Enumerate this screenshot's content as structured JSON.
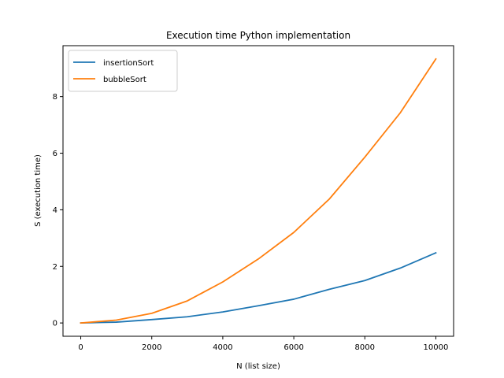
{
  "chart_data": {
    "type": "line",
    "title": "Execution time Python implementation",
    "xlabel": "N (list size)",
    "ylabel": "S (execution time)",
    "xlim": [
      -500,
      10500
    ],
    "ylim": [
      -0.47,
      9.8
    ],
    "xticks": [
      0,
      2000,
      4000,
      6000,
      8000,
      10000
    ],
    "yticks": [
      0,
      2,
      4,
      6,
      8
    ],
    "grid": false,
    "legend_position": "top-left",
    "x": [
      0,
      1000,
      2000,
      3000,
      4000,
      5000,
      6000,
      7000,
      8000,
      9000,
      10000
    ],
    "series": [
      {
        "name": "insertionSort",
        "color": "#1f77b4",
        "values": [
          0.0,
          0.03,
          0.12,
          0.22,
          0.39,
          0.61,
          0.84,
          1.19,
          1.5,
          1.94,
          2.48
        ]
      },
      {
        "name": "bubbleSort",
        "color": "#ff7f0e",
        "values": [
          0.0,
          0.1,
          0.34,
          0.78,
          1.45,
          2.26,
          3.2,
          4.38,
          5.86,
          7.43,
          9.33
        ]
      }
    ]
  }
}
